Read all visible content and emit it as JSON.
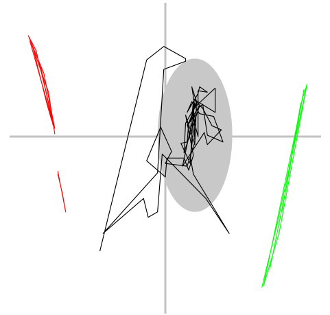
{
  "chart_data": {
    "type": "line",
    "title": "",
    "xlabel": "",
    "ylabel": "",
    "axes": {
      "crosshair": true,
      "color": "#c2c2c2",
      "x_range": [
        -100,
        100
      ],
      "y_range": [
        -100,
        100
      ]
    },
    "ellipse": {
      "name": "",
      "color": "#c8c8c8",
      "center": [
        19,
        1
      ],
      "radius": [
        24,
        57
      ]
    },
    "series": [
      {
        "color": "#ff0000",
        "lines": [
          [
            [
              -88,
              75
            ],
            [
              -78,
              47
            ],
            [
              -71,
              6
            ],
            [
              -83,
              64
            ],
            [
              -88,
              75
            ]
          ],
          [
            [
              -87,
              71
            ],
            [
              -74,
              18
            ],
            [
              -72,
              8
            ],
            [
              -80,
              52
            ]
          ],
          [
            [
              -85,
              66
            ],
            [
              -76,
              24
            ],
            [
              -73,
              12
            ]
          ],
          [
            [
              -69,
              -26
            ],
            [
              -64,
              -56
            ],
            [
              -66,
              -43
            ],
            [
              -69,
              -28
            ]
          ],
          [
            [
              -86,
              69
            ],
            [
              -75,
              33
            ],
            [
              -71,
              2
            ]
          ]
        ]
      },
      {
        "color": "#00ff00",
        "lines": [
          [
            [
              91,
              39
            ],
            [
              73,
              -72
            ],
            [
              63,
              -111
            ],
            [
              88,
              28
            ],
            [
              91,
              39
            ]
          ],
          [
            [
              90,
              33
            ],
            [
              72,
              -64
            ],
            [
              62,
              -112
            ]
          ],
          [
            [
              89,
              35
            ],
            [
              78,
              -36
            ],
            [
              67,
              -99
            ]
          ],
          [
            [
              87,
              25
            ],
            [
              75,
              -55
            ]
          ]
        ]
      },
      {
        "color": "#000000",
        "lines": [
          [
            [
              -42,
              -85
            ],
            [
              -12,
              57
            ],
            [
              -1,
              67
            ],
            [
              13,
              58
            ],
            [
              13,
              56
            ],
            [
              -1,
              50
            ],
            [
              -5,
              -27
            ],
            [
              -40,
              -72
            ],
            [
              -14,
              -46
            ],
            [
              -11,
              -60
            ],
            [
              -5,
              -56
            ],
            [
              -2,
              -13
            ],
            [
              26,
              -46
            ],
            [
              41,
              -72
            ],
            [
              18,
              -28
            ],
            [
              16,
              -15
            ],
            [
              20,
              20
            ],
            [
              24,
              24
            ],
            [
              27,
              1
            ],
            [
              37,
              -4
            ],
            [
              31,
              15
            ],
            [
              22,
              17
            ],
            [
              17,
              26
            ],
            [
              14,
              18
            ],
            [
              21,
              32
            ],
            [
              22,
              37
            ],
            [
              27,
              33
            ],
            [
              21,
              34
            ],
            [
              21,
              0
            ],
            [
              17,
              18
            ],
            [
              20,
              26
            ],
            [
              17,
              37
            ],
            [
              19,
              22
            ],
            [
              32,
              36
            ],
            [
              32,
              18
            ],
            [
              18,
              28
            ],
            [
              24,
              21
            ],
            [
              30,
              8
            ],
            [
              36,
              5
            ],
            [
              27,
              -6
            ],
            [
              25,
              3
            ],
            [
              11,
              -22
            ],
            [
              16,
              5
            ],
            [
              19,
              16
            ],
            [
              14,
              8
            ],
            [
              22,
              23
            ],
            [
              12,
              -12
            ],
            [
              13,
              10
            ],
            [
              18,
              20
            ],
            [
              16,
              -20
            ],
            [
              10,
              -5
            ],
            [
              14,
              -4
            ],
            [
              15,
              10
            ],
            [
              20,
              25
            ],
            [
              19,
              -4
            ],
            [
              14,
              -22
            ],
            [
              0,
              -20
            ],
            [
              4,
              -11
            ],
            [
              -3,
              7
            ],
            [
              -12,
              -18
            ],
            [
              0,
              -30
            ],
            [
              1,
              -16
            ],
            [
              12,
              -16
            ],
            [
              15,
              -25
            ],
            [
              18,
              -14
            ],
            [
              13,
              16
            ],
            [
              19,
              -6
            ],
            [
              18,
              26
            ],
            [
              16,
              4
            ]
          ]
        ]
      }
    ]
  }
}
